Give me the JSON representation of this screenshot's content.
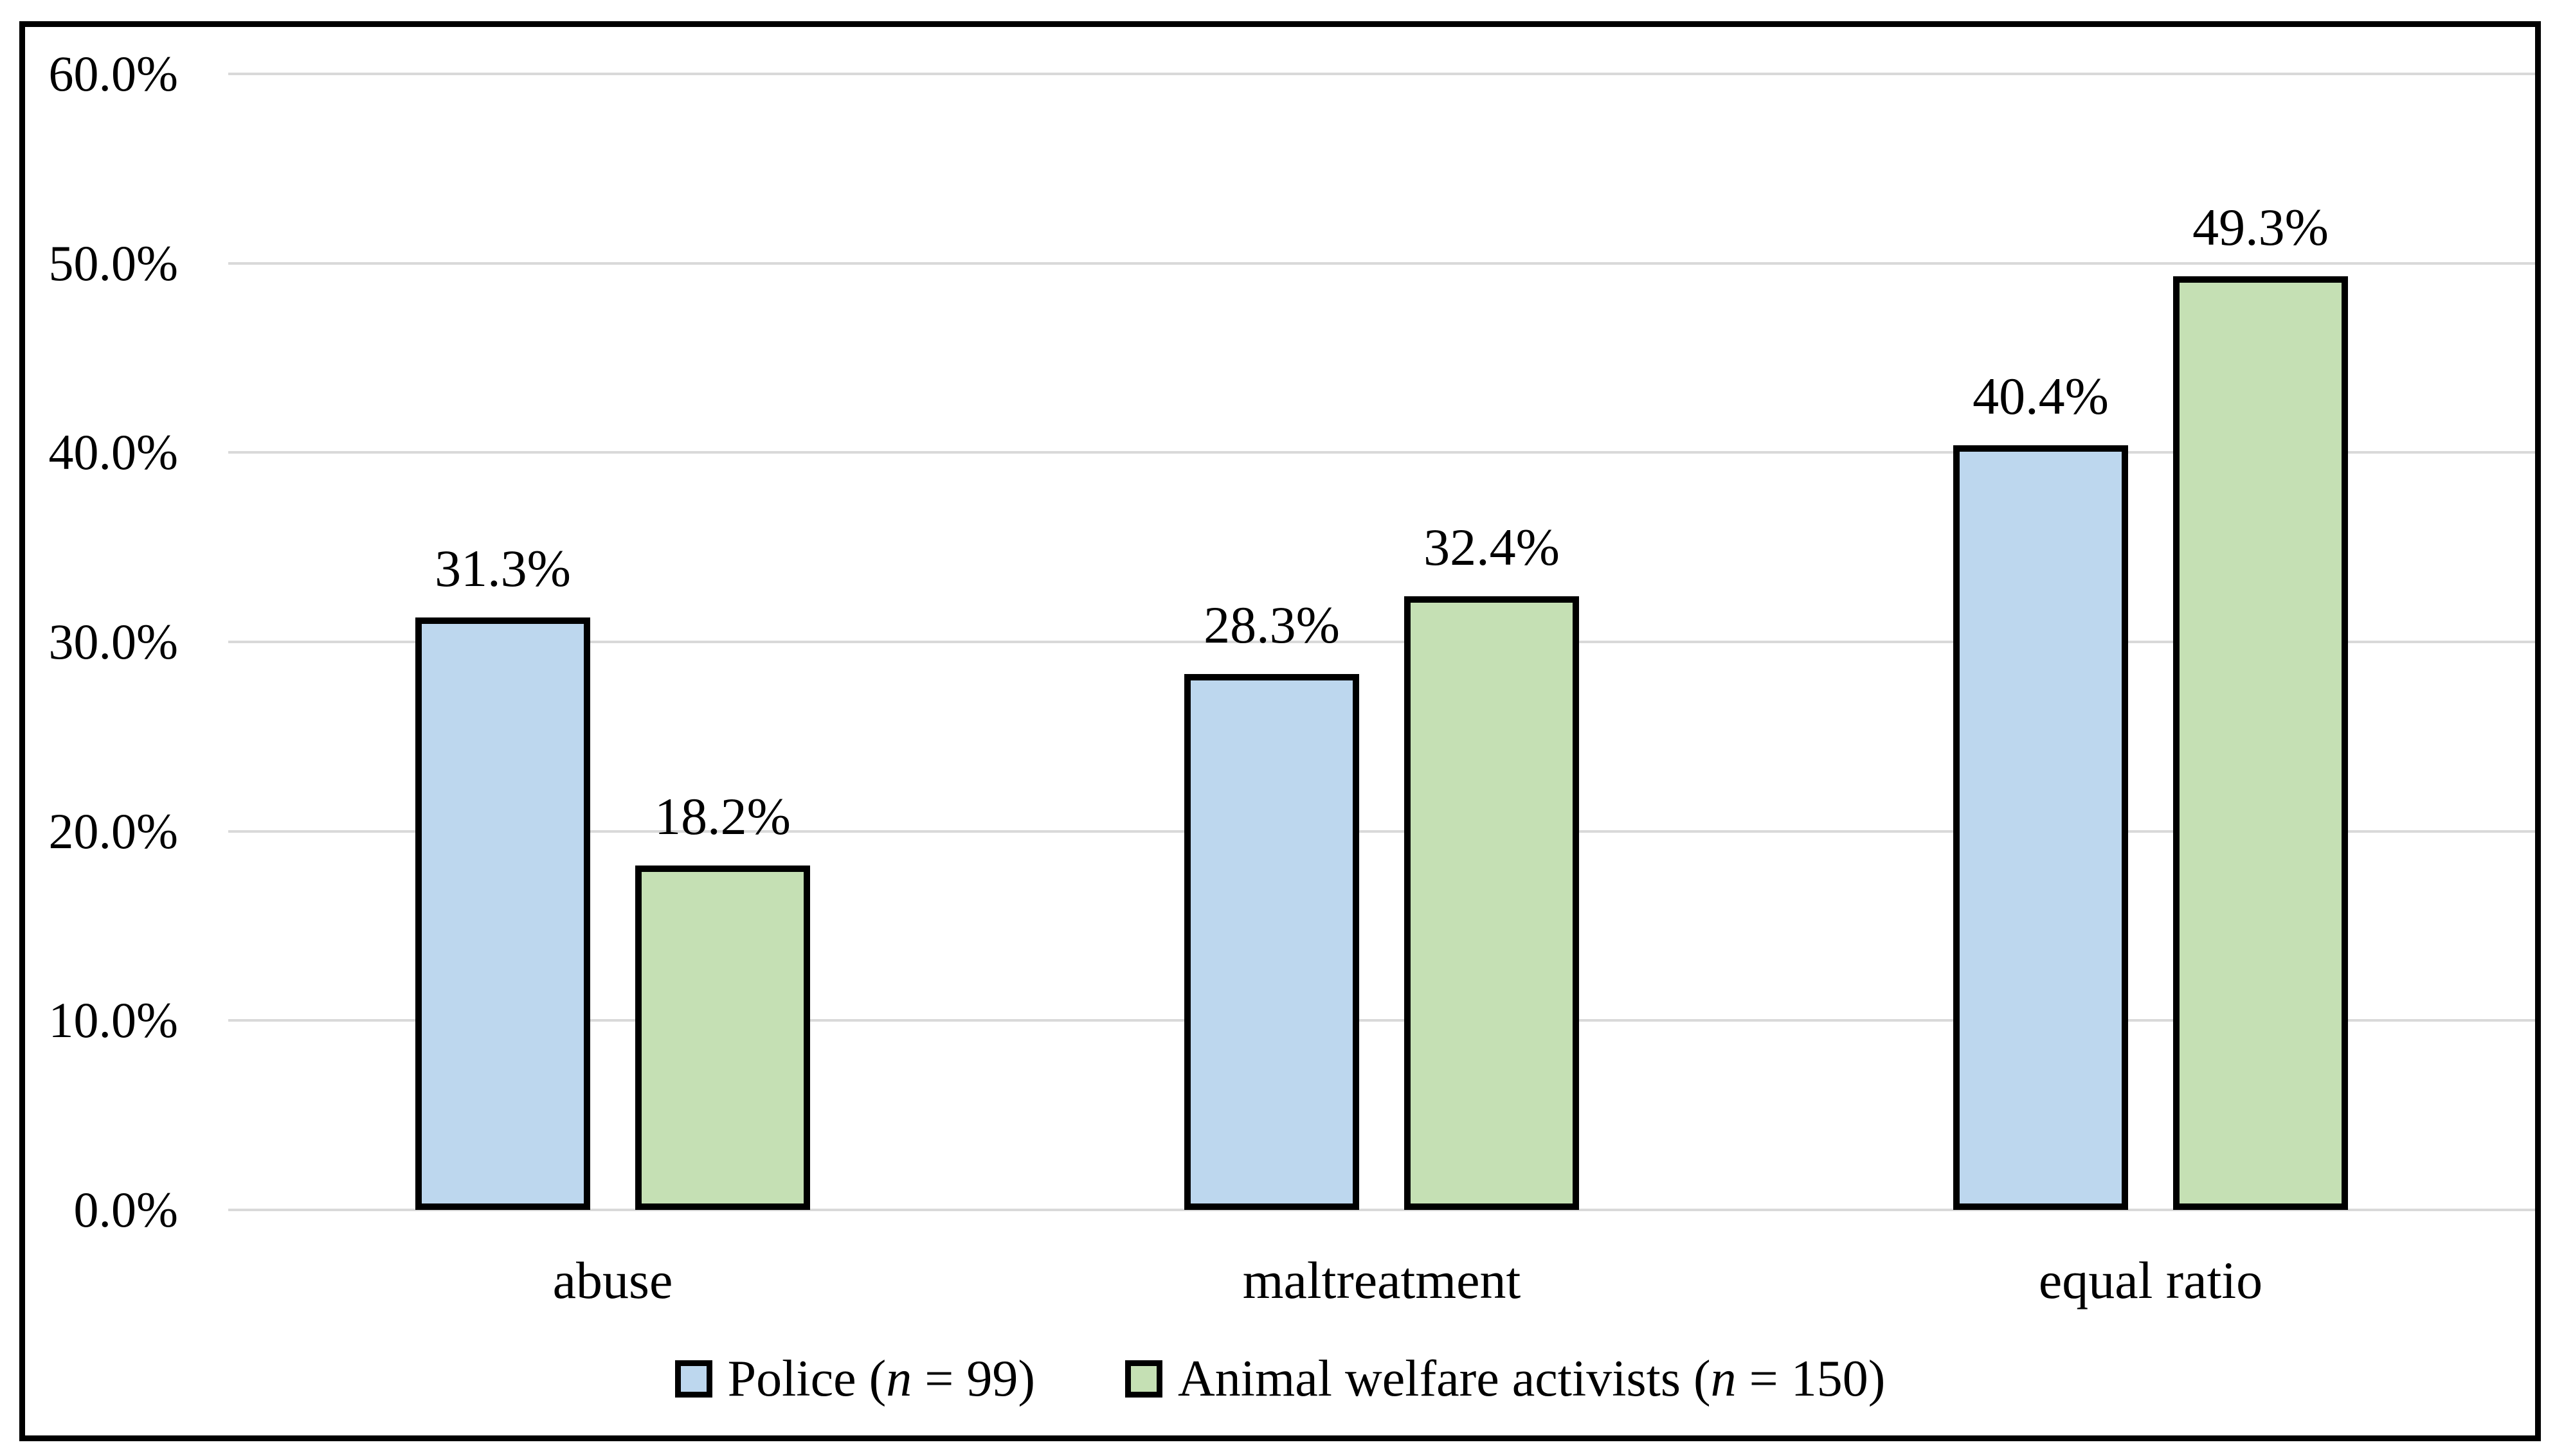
{
  "figure": {
    "background": "#FFFFFF",
    "frame_border_color": "#000000",
    "text_color": "#000000"
  },
  "chart_data": {
    "type": "bar",
    "title": "",
    "categories": [
      "abuse",
      "maltreatment",
      "equal ratio"
    ],
    "series": [
      {
        "name": "Police",
        "legend_label": {
          "pre": "Police (",
          "italic": "n",
          "post": " = 99)"
        },
        "color": "#BDD7EE",
        "border_color": "#000000",
        "values": [
          31.3,
          28.3,
          40.4
        ],
        "data_labels": [
          "31.3%",
          "28.3%",
          "40.4%"
        ]
      },
      {
        "name": "Animal welfare activists",
        "legend_label": {
          "pre": "Animal welfare activists (",
          "italic": "n",
          "post": " = 150)"
        },
        "color": "#C5E0B4",
        "border_color": "#000000",
        "values": [
          18.2,
          32.4,
          49.3
        ],
        "data_labels": [
          "18.2%",
          "32.4%",
          "49.3%"
        ]
      }
    ],
    "y_axis": {
      "min": 0,
      "max": 60,
      "step": 10,
      "tick_labels": [
        "0.0%",
        "10.0%",
        "20.0%",
        "30.0%",
        "40.0%",
        "50.0%",
        "60.0%"
      ]
    },
    "grid": true,
    "gridline_color": "#D9D9D9",
    "legend_position": "bottom"
  }
}
